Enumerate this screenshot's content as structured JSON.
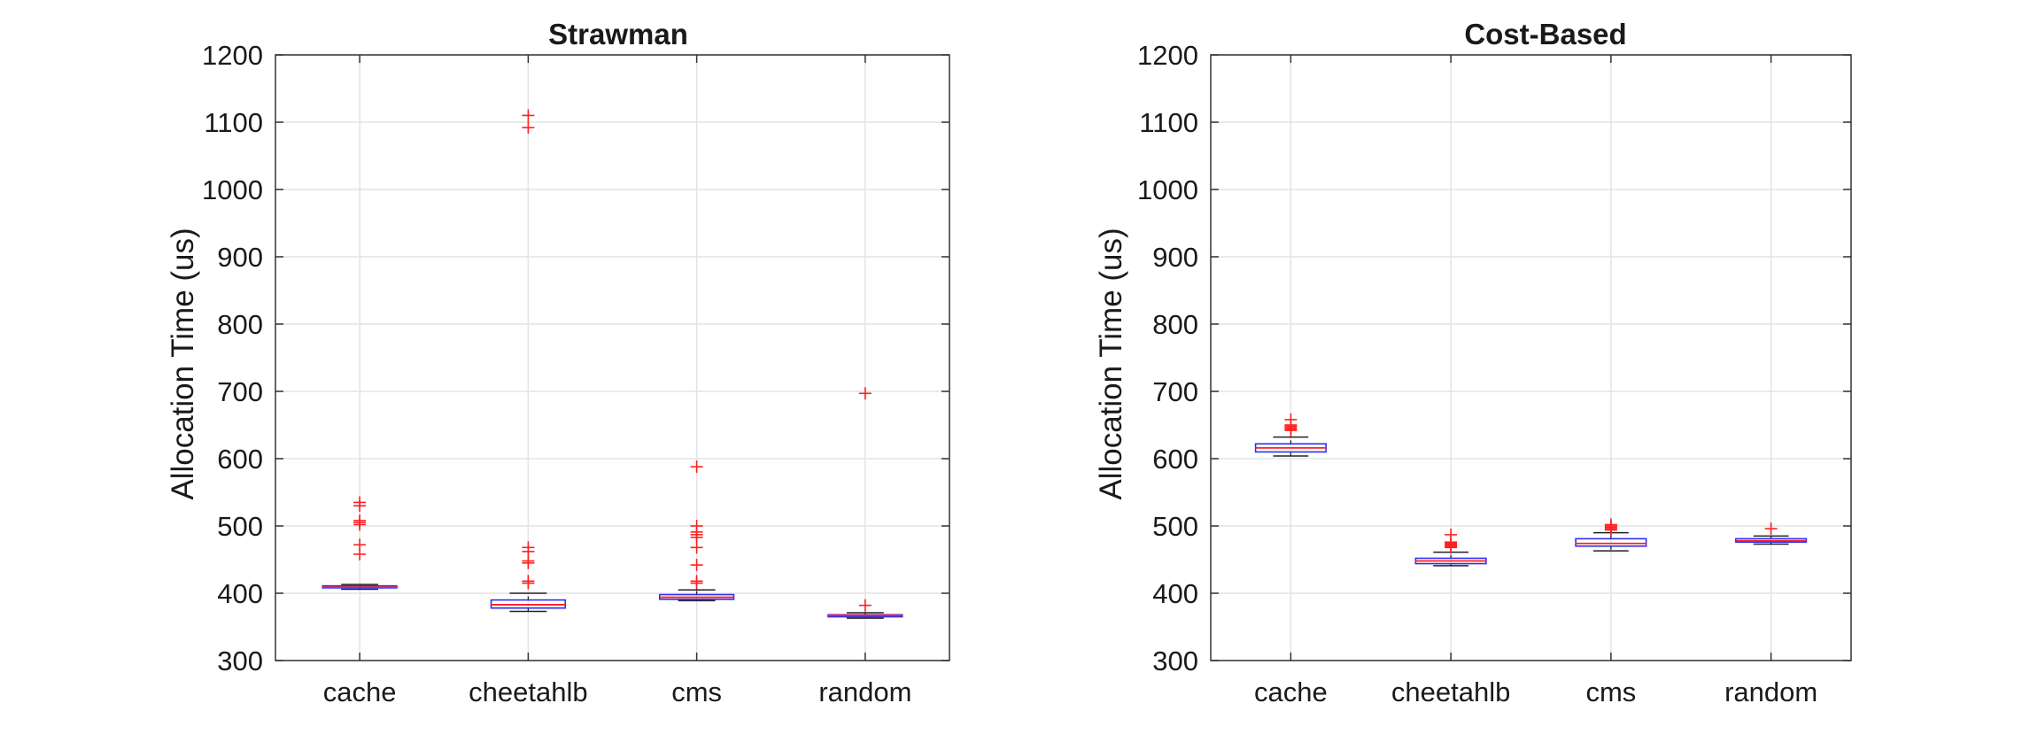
{
  "colors": {
    "box": "#2f2ff0",
    "median": "#ff2020",
    "whisker": "#222222",
    "outlier": "#ff2020"
  },
  "chart_data": [
    {
      "type": "boxplot",
      "title": "Strawman",
      "xlabel": "",
      "ylabel": "Allocation Time (us)",
      "ylim": [
        300,
        1200
      ],
      "yticks": [
        300,
        400,
        500,
        600,
        700,
        800,
        900,
        1000,
        1100,
        1200
      ],
      "grid": true,
      "categories": [
        "cache",
        "cheetahlb",
        "cms",
        "random"
      ],
      "boxes": [
        {
          "category": "cache",
          "q1": 408,
          "median": 409,
          "q3": 411,
          "whisker_low": 406,
          "whisker_high": 413,
          "outliers": [
            458,
            472,
            502,
            505,
            508,
            530,
            535
          ]
        },
        {
          "category": "cheetahlb",
          "q1": 378,
          "median": 383,
          "q3": 390,
          "whisker_low": 373,
          "whisker_high": 400,
          "outliers": [
            415,
            418,
            445,
            448,
            462,
            468,
            1092,
            1110
          ]
        },
        {
          "category": "cms",
          "q1": 391,
          "median": 394,
          "q3": 398,
          "whisker_low": 389,
          "whisker_high": 405,
          "outliers": [
            415,
            418,
            442,
            468,
            483,
            487,
            491,
            500,
            588
          ]
        },
        {
          "category": "random",
          "q1": 365,
          "median": 367,
          "q3": 368,
          "whisker_low": 363,
          "whisker_high": 371,
          "outliers": [
            382,
            697
          ]
        }
      ]
    },
    {
      "type": "boxplot",
      "title": "Cost-Based",
      "xlabel": "",
      "ylabel": "Allocation Time (us)",
      "ylim": [
        300,
        1200
      ],
      "yticks": [
        300,
        400,
        500,
        600,
        700,
        800,
        900,
        1000,
        1100,
        1200
      ],
      "grid": true,
      "categories": [
        "cache",
        "cheetahlb",
        "cms",
        "random"
      ],
      "boxes": [
        {
          "category": "cache",
          "q1": 610,
          "median": 616,
          "q3": 622,
          "whisker_low": 604,
          "whisker_high": 632,
          "outliers": [
            642,
            644,
            646,
            648,
            650,
            658
          ]
        },
        {
          "category": "cheetahlb",
          "q1": 444,
          "median": 448,
          "q3": 452,
          "whisker_low": 441,
          "whisker_high": 461,
          "outliers": [
            468,
            470,
            472,
            474,
            476,
            487
          ]
        },
        {
          "category": "cms",
          "q1": 470,
          "median": 474,
          "q3": 481,
          "whisker_low": 463,
          "whisker_high": 490,
          "outliers": [
            494,
            496,
            498,
            500,
            502
          ]
        },
        {
          "category": "random",
          "q1": 476,
          "median": 478,
          "q3": 481,
          "whisker_low": 473,
          "whisker_high": 485,
          "outliers": [
            496
          ]
        }
      ]
    }
  ]
}
